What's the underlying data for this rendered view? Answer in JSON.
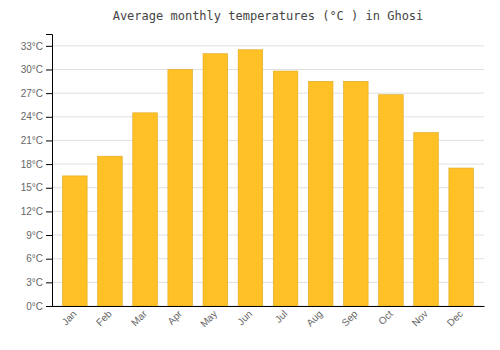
{
  "chart_data": {
    "type": "bar",
    "title": "Average monthly temperatures (°C ) in Ghosi",
    "categories": [
      "Jan",
      "Feb",
      "Mar",
      "Apr",
      "May",
      "Jun",
      "Jul",
      "Aug",
      "Sep",
      "Oct",
      "Nov",
      "Dec"
    ],
    "values": [
      16.5,
      19.0,
      24.5,
      30.0,
      32.0,
      32.5,
      29.8,
      28.5,
      28.5,
      26.8,
      22.0,
      17.5
    ],
    "color": "#FFC125",
    "ylim": [
      0,
      34.5
    ],
    "yticks": [
      {
        "value": 0,
        "label": "0°C"
      },
      {
        "value": 3,
        "label": "3°C"
      },
      {
        "value": 6,
        "label": "6°C"
      },
      {
        "value": 9,
        "label": "9°C"
      },
      {
        "value": 12,
        "label": "12°C"
      },
      {
        "value": 15,
        "label": "15°C"
      },
      {
        "value": 18,
        "label": "18°C"
      },
      {
        "value": 21,
        "label": "21°C"
      },
      {
        "value": 24,
        "label": "24°C"
      },
      {
        "value": 27,
        "label": "27°C"
      },
      {
        "value": 30,
        "label": "30°C"
      },
      {
        "value": 33,
        "label": "33°C"
      }
    ],
    "grid": true
  }
}
